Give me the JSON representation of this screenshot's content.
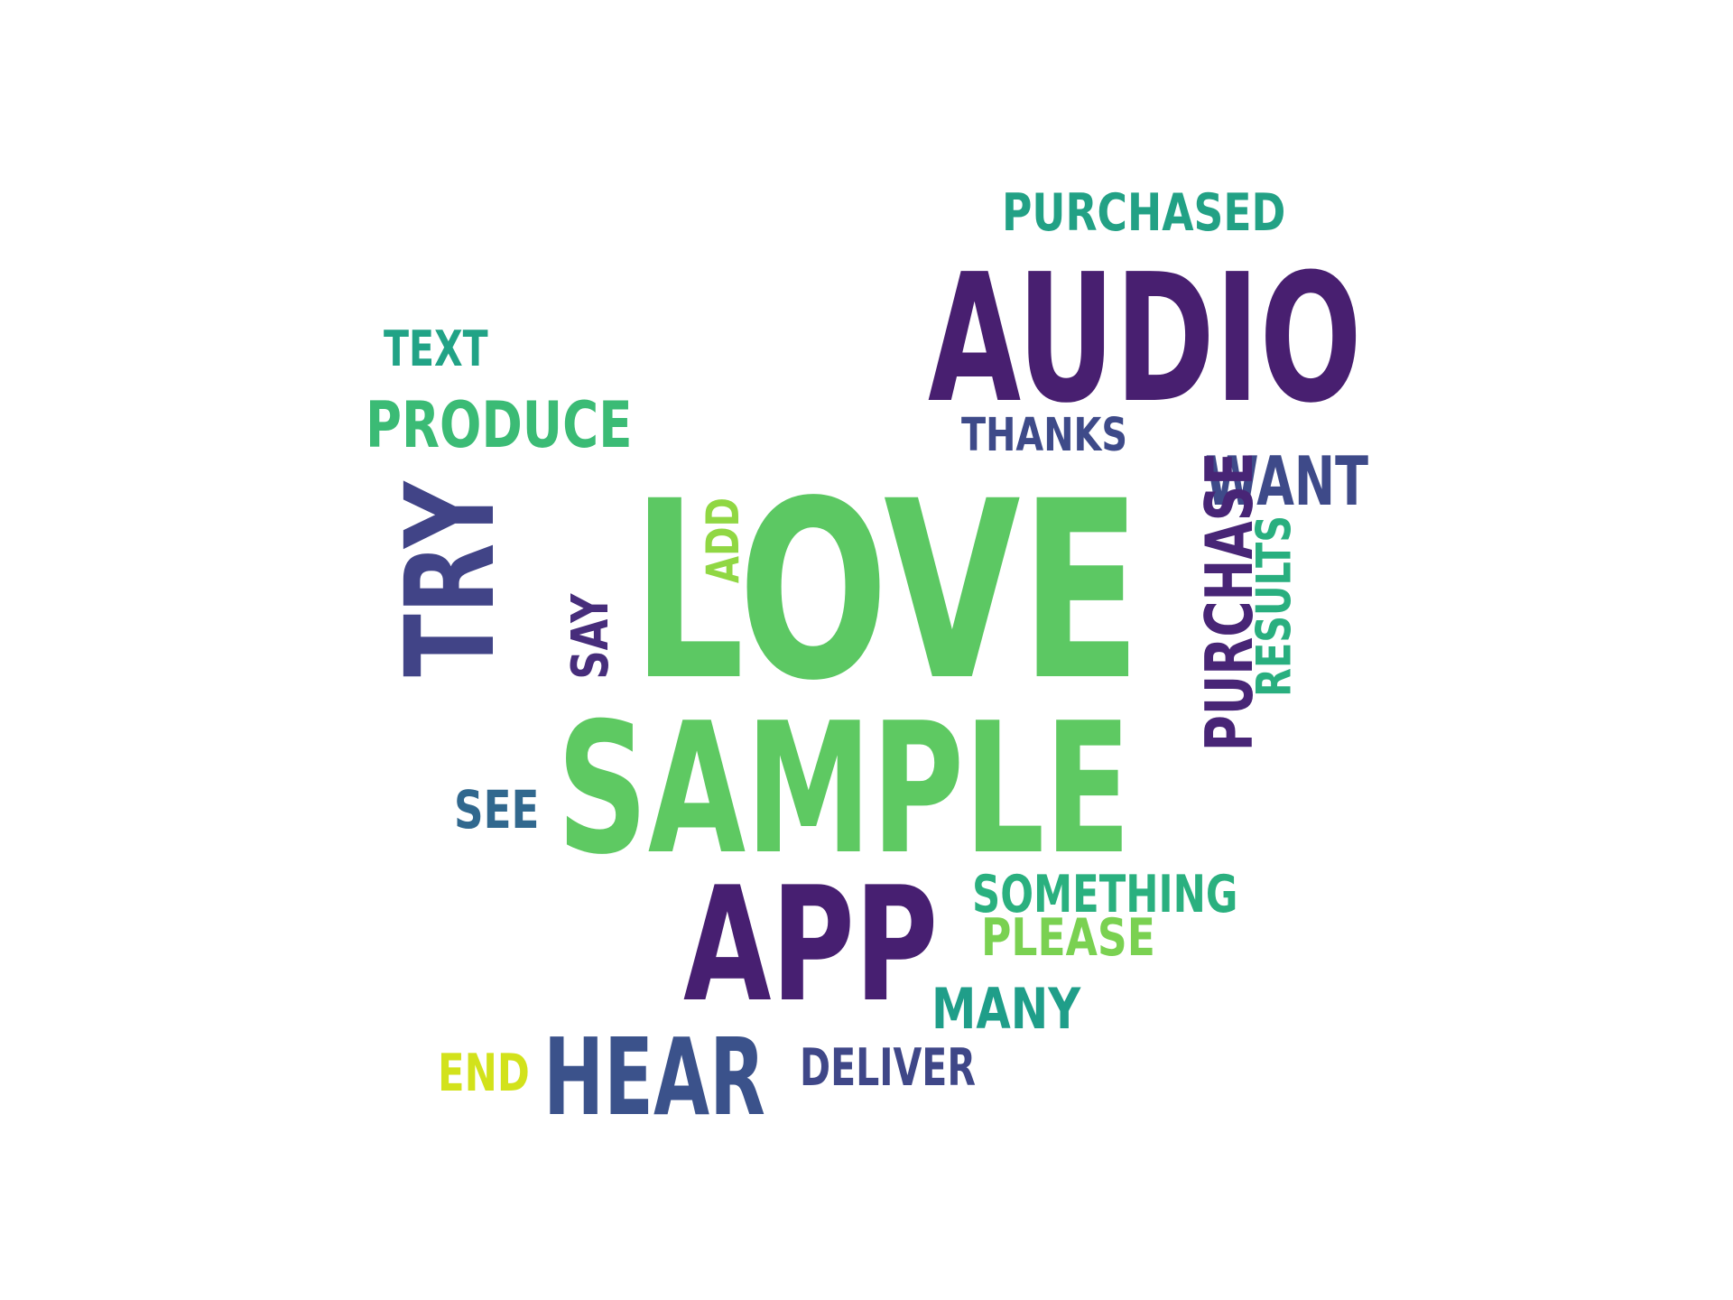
{
  "words": [
    {
      "text": "PURCHASED",
      "color": "#22a185"
    },
    {
      "text": "AUDIO",
      "color": "#481f70"
    },
    {
      "text": "TEXT",
      "color": "#21a386"
    },
    {
      "text": "PRODUCE",
      "color": "#3bbb75"
    },
    {
      "text": "THANKS",
      "color": "#3e4a89"
    },
    {
      "text": "WANT",
      "color": "#3e4a89"
    },
    {
      "text": "LOVE",
      "color": "#5cc863"
    },
    {
      "text": "TRY",
      "color": "#414487"
    },
    {
      "text": "ADD",
      "color": "#90d743"
    },
    {
      "text": "SAY",
      "color": "#472d7b"
    },
    {
      "text": "PURCHASE",
      "color": "#482576"
    },
    {
      "text": "RESULTS",
      "color": "#29af7f"
    },
    {
      "text": "SAMPLE",
      "color": "#5ec962"
    },
    {
      "text": "SEE",
      "color": "#31688e"
    },
    {
      "text": "SOMETHING",
      "color": "#2ab07f"
    },
    {
      "text": "PLEASE",
      "color": "#7ad151"
    },
    {
      "text": "APP",
      "color": "#471f71"
    },
    {
      "text": "MANY",
      "color": "#1f9e89"
    },
    {
      "text": "END",
      "color": "#d2e21b"
    },
    {
      "text": "HEAR",
      "color": "#3b528b"
    },
    {
      "text": "DELIVER",
      "color": "#3f4788"
    }
  ]
}
